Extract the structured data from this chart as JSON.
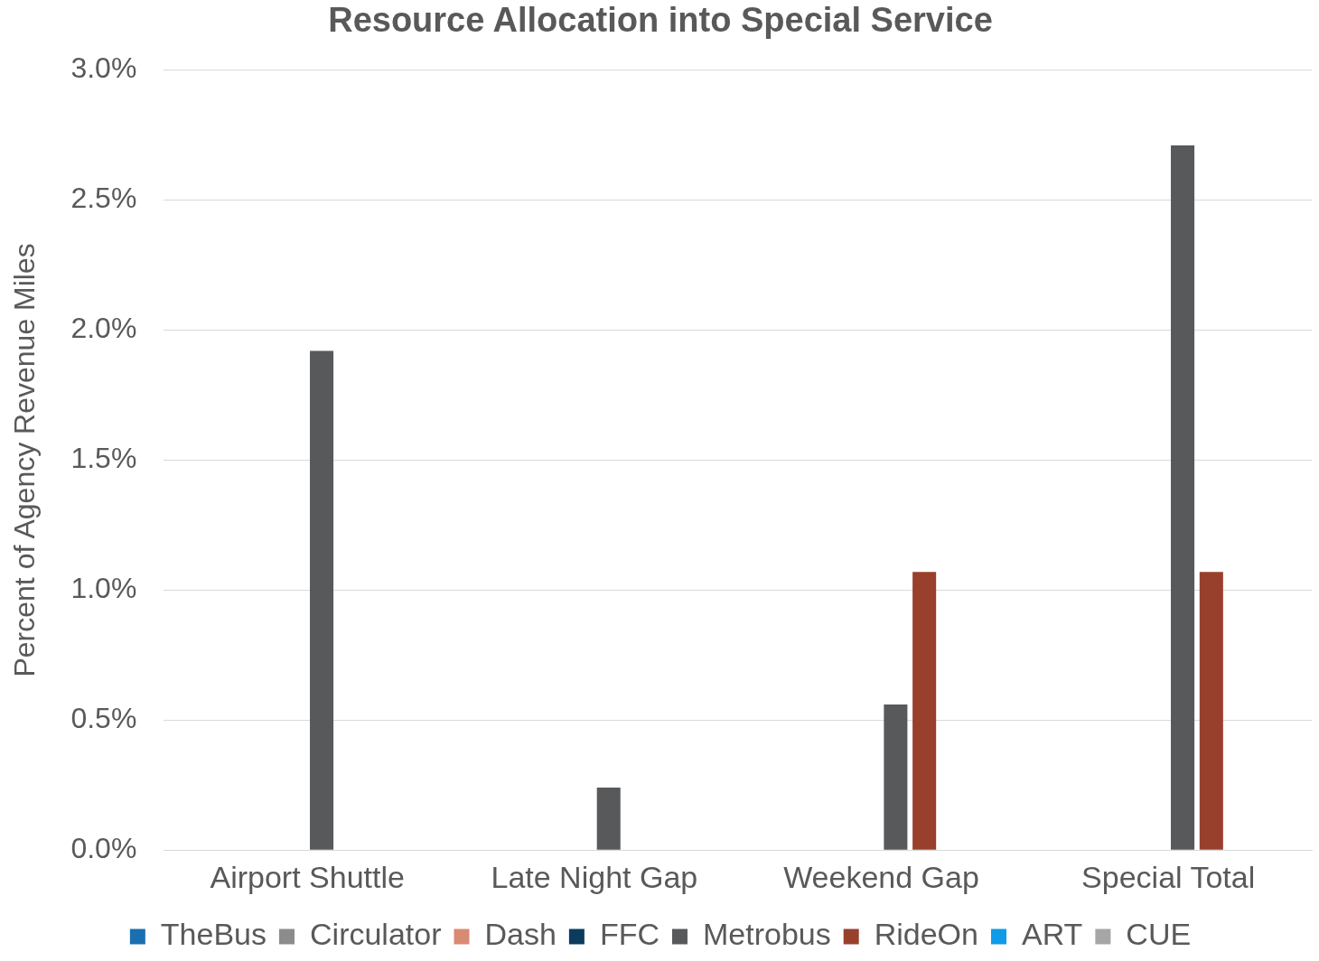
{
  "chart_data": {
    "type": "bar",
    "title": "Resource Allocation into Special Service",
    "ylabel": "Percent of Agency Revenue Miles",
    "categories": [
      "Airport Shuttle",
      "Late Night Gap",
      "Weekend Gap",
      "Special Total"
    ],
    "series": [
      {
        "name": "TheBus",
        "color": "#1a6fb0",
        "values": [
          0,
          0,
          0,
          0
        ]
      },
      {
        "name": "Circulator",
        "color": "#8c8c8e",
        "values": [
          0,
          0,
          0,
          0
        ]
      },
      {
        "name": "Dash",
        "color": "#d98a73",
        "values": [
          0,
          0,
          0,
          0
        ]
      },
      {
        "name": "FFC",
        "color": "#0b3c5d",
        "values": [
          0,
          0,
          0,
          0
        ]
      },
      {
        "name": "Metrobus",
        "color": "#58595b",
        "values": [
          1.92,
          0.24,
          0.56,
          2.71
        ]
      },
      {
        "name": "RideOn",
        "color": "#98402c",
        "values": [
          0,
          0,
          1.07,
          1.07
        ]
      },
      {
        "name": "ART",
        "color": "#0f9be8",
        "values": [
          0,
          0,
          0,
          0
        ]
      },
      {
        "name": "CUE",
        "color": "#a6a6a8",
        "values": [
          0,
          0,
          0,
          0
        ]
      }
    ],
    "ylim": [
      0,
      3
    ],
    "yticks": [
      {
        "value": 0,
        "label": "0.0%"
      },
      {
        "value": 0.5,
        "label": "0.5%"
      },
      {
        "value": 1,
        "label": "1.0%"
      },
      {
        "value": 1.5,
        "label": "1.5%"
      },
      {
        "value": 2,
        "label": "2.0%"
      },
      {
        "value": 2.5,
        "label": "2.5%"
      },
      {
        "value": 3,
        "label": "3.0%"
      }
    ],
    "grid": "y",
    "legend": "bottom"
  }
}
